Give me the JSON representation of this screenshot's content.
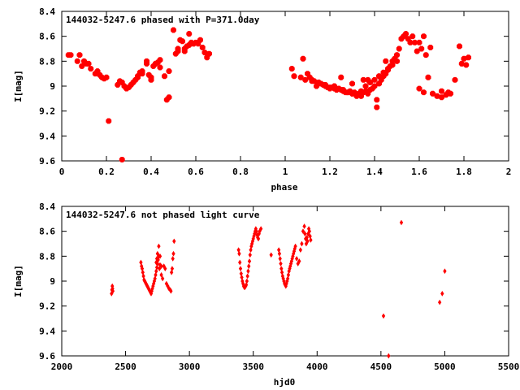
{
  "chart_data": [
    {
      "type": "scatter",
      "title": "144032-5247.6 phased with P=371.0day",
      "xlabel": "phase",
      "ylabel": "I[mag]",
      "xlim": [
        0,
        2
      ],
      "ylim": [
        9.6,
        8.4
      ],
      "y_inverted": true,
      "xticks": [
        "0",
        "0.2",
        "0.4",
        "0.6",
        "0.8",
        "1",
        "1.2",
        "1.4",
        "1.6",
        "1.8",
        "2"
      ],
      "yticks": [
        "8.4",
        "8.6",
        "8.8",
        "9",
        "9.2",
        "9.4",
        "9.6"
      ],
      "grid": false,
      "marker_color": "#ff0000",
      "marker": "star",
      "x": [
        0.03,
        0.04,
        0.07,
        0.08,
        0.09,
        0.1,
        0.11,
        0.12,
        0.13,
        0.15,
        0.16,
        0.17,
        0.18,
        0.19,
        0.2,
        0.21,
        0.25,
        0.26,
        0.27,
        0.28,
        0.29,
        0.3,
        0.31,
        0.32,
        0.33,
        0.34,
        0.35,
        0.36,
        0.38,
        0.39,
        0.4,
        0.41,
        0.42,
        0.43,
        0.44,
        0.47,
        0.48,
        0.51,
        0.52,
        0.53,
        0.54,
        0.55,
        0.56,
        0.57,
        0.58,
        0.59,
        0.6,
        0.61,
        0.62,
        0.63,
        0.64,
        0.65,
        0.66,
        0.27,
        0.29,
        0.34,
        0.36,
        0.38,
        0.4,
        0.42,
        0.44,
        0.46,
        0.48,
        0.5,
        0.52,
        0.55,
        0.57,
        0.59,
        1.03,
        1.04,
        1.07,
        1.08,
        1.09,
        1.1,
        1.11,
        1.12,
        1.13,
        1.15,
        1.16,
        1.17,
        1.18,
        1.19,
        1.2,
        1.21,
        1.22,
        1.23,
        1.24,
        1.25,
        1.26,
        1.27,
        1.28,
        1.29,
        1.3,
        1.31,
        1.32,
        1.33,
        1.34,
        1.35,
        1.36,
        1.37,
        1.38,
        1.39,
        1.4,
        1.41,
        1.42,
        1.43,
        1.44,
        1.45,
        1.46,
        1.47,
        1.48,
        1.49,
        1.5,
        1.51,
        1.52,
        1.53,
        1.54,
        1.55,
        1.56,
        1.57,
        1.58,
        1.59,
        1.6,
        1.61,
        1.62,
        1.63,
        1.64,
        1.66,
        1.68,
        1.7,
        1.72,
        1.74,
        1.76,
        1.78,
        1.8,
        1.81,
        1.82,
        1.12,
        1.14,
        1.16,
        1.18,
        1.2,
        1.22,
        1.24,
        1.26,
        1.28,
        1.3,
        1.32,
        1.34,
        1.36,
        1.38,
        1.4,
        1.42,
        1.44,
        1.46,
        1.48,
        1.5,
        1.25,
        1.3,
        1.35,
        1.37,
        1.41,
        1.45,
        1.6,
        1.62,
        1.65,
        1.7,
        1.73,
        1.79
      ],
      "y": [
        8.75,
        8.75,
        8.8,
        8.75,
        8.84,
        8.8,
        8.82,
        8.82,
        8.86,
        8.9,
        8.88,
        8.91,
        8.93,
        8.94,
        8.93,
        9.28,
        8.99,
        8.96,
        9.59,
        9.0,
        9.02,
        9.01,
        8.99,
        8.97,
        8.95,
        8.92,
        8.89,
        8.9,
        8.82,
        8.91,
        8.93,
        8.84,
        8.82,
        8.81,
        8.79,
        9.11,
        9.09,
        8.74,
        8.72,
        8.63,
        8.64,
        8.7,
        8.68,
        8.67,
        8.65,
        8.66,
        8.65,
        8.66,
        8.63,
        8.69,
        8.73,
        8.77,
        8.74,
        8.97,
        9.02,
        8.93,
        8.88,
        8.8,
        8.95,
        8.82,
        8.85,
        8.92,
        8.88,
        8.55,
        8.7,
        8.72,
        8.58,
        8.66,
        8.86,
        8.92,
        8.93,
        8.78,
        8.95,
        8.9,
        8.93,
        8.95,
        8.96,
        8.97,
        8.98,
        8.99,
        9.0,
        9.01,
        9.02,
        9.01,
        9.02,
        9.03,
        9.02,
        9.03,
        9.04,
        9.05,
        9.05,
        9.04,
        9.06,
        9.05,
        9.07,
        9.06,
        9.08,
        9.05,
        9.04,
        9.06,
        9.03,
        9.02,
        9.0,
        9.17,
        8.98,
        8.95,
        8.92,
        8.9,
        8.87,
        8.84,
        8.8,
        8.78,
        8.75,
        8.7,
        8.62,
        8.6,
        8.58,
        8.62,
        8.65,
        8.6,
        8.65,
        8.72,
        9.02,
        8.7,
        9.05,
        8.75,
        8.93,
        9.06,
        9.08,
        9.04,
        9.07,
        9.06,
        8.95,
        8.68,
        8.78,
        8.83,
        8.77,
        8.96,
        9.0,
        8.98,
        8.99,
        9.01,
        9.0,
        9.02,
        9.03,
        9.05,
        9.06,
        9.08,
        9.04,
        9.0,
        8.97,
        8.95,
        8.92,
        8.89,
        8.86,
        8.83,
        8.8,
        8.93,
        8.98,
        8.95,
        8.95,
        9.11,
        8.8,
        8.65,
        8.6,
        8.69,
        9.09,
        9.05,
        8.82
      ]
    },
    {
      "type": "scatter",
      "title": "144032-5247.6 not phased light curve",
      "xlabel": "hjd0",
      "ylabel": "I[mag]",
      "xlim": [
        2000,
        5500
      ],
      "ylim": [
        9.6,
        8.4
      ],
      "y_inverted": true,
      "xticks": [
        "2000",
        "2500",
        "3000",
        "3500",
        "4000",
        "4500",
        "5000",
        "5500"
      ],
      "yticks": [
        "8.4",
        "8.6",
        "8.8",
        "9",
        "9.2",
        "9.4",
        "9.6"
      ],
      "grid": false,
      "marker_color": "#ff0000",
      "marker": "diamond",
      "x": [
        2390,
        2393,
        2396,
        2398,
        2400,
        2620,
        2625,
        2630,
        2635,
        2640,
        2645,
        2650,
        2655,
        2660,
        2665,
        2670,
        2675,
        2680,
        2685,
        2690,
        2695,
        2700,
        2705,
        2710,
        2715,
        2720,
        2725,
        2730,
        2735,
        2740,
        2745,
        2750,
        2755,
        2760,
        2765,
        2770,
        2780,
        2790,
        2800,
        2810,
        2820,
        2830,
        2840,
        2850,
        2855,
        2860,
        2865,
        2870,
        2875,
        2880,
        2740,
        2745,
        2750,
        2760,
        2770,
        2780,
        3385,
        3390,
        3395,
        3400,
        3405,
        3410,
        3415,
        3420,
        3425,
        3430,
        3435,
        3440,
        3445,
        3450,
        3455,
        3460,
        3465,
        3470,
        3475,
        3480,
        3485,
        3490,
        3495,
        3500,
        3505,
        3510,
        3515,
        3520,
        3525,
        3530,
        3535,
        3540,
        3545,
        3550,
        3560,
        3640,
        3700,
        3705,
        3710,
        3715,
        3720,
        3725,
        3730,
        3735,
        3740,
        3745,
        3750,
        3755,
        3760,
        3765,
        3770,
        3775,
        3780,
        3785,
        3790,
        3795,
        3800,
        3805,
        3810,
        3815,
        3820,
        3825,
        3830,
        3840,
        3850,
        3860,
        3870,
        3880,
        3890,
        3900,
        3905,
        3910,
        3915,
        3920,
        3925,
        3930,
        3935,
        3940,
        3945,
        3950,
        4520,
        4560,
        4660,
        4960,
        4980,
        5000
      ],
      "y": [
        9.1,
        9.07,
        9.04,
        9.06,
        9.08,
        8.85,
        8.88,
        8.9,
        8.93,
        8.96,
        8.99,
        9.0,
        9.01,
        9.02,
        9.03,
        9.04,
        9.05,
        9.06,
        9.07,
        9.08,
        9.09,
        9.1,
        9.08,
        9.06,
        9.04,
        9.02,
        9.0,
        8.98,
        8.95,
        8.92,
        8.89,
        8.86,
        8.83,
        8.8,
        8.9,
        8.87,
        8.95,
        8.98,
        8.88,
        8.9,
        9.02,
        9.04,
        9.06,
        9.07,
        9.08,
        8.93,
        8.9,
        8.82,
        8.78,
        8.68,
        8.85,
        8.82,
        8.78,
        8.72,
        8.8,
        8.88,
        8.75,
        8.78,
        8.85,
        8.9,
        8.94,
        8.97,
        9.0,
        9.02,
        9.04,
        9.05,
        9.05,
        9.04,
        9.03,
        9.0,
        8.96,
        8.92,
        8.88,
        8.84,
        8.79,
        8.75,
        8.72,
        8.7,
        8.68,
        8.66,
        8.64,
        8.62,
        8.6,
        8.58,
        8.6,
        8.63,
        8.65,
        8.66,
        8.62,
        8.6,
        8.58,
        8.79,
        8.75,
        8.78,
        8.82,
        8.86,
        8.9,
        8.93,
        8.96,
        8.98,
        9.0,
        9.02,
        9.03,
        9.04,
        9.02,
        9.0,
        8.98,
        8.95,
        8.92,
        8.9,
        8.88,
        8.86,
        8.84,
        8.82,
        8.8,
        8.78,
        8.76,
        8.74,
        8.72,
        8.82,
        8.86,
        8.84,
        8.75,
        8.7,
        8.6,
        8.56,
        8.62,
        8.66,
        8.7,
        8.65,
        8.68,
        8.62,
        8.58,
        8.6,
        8.64,
        8.67,
        9.28,
        9.6,
        8.53,
        9.17,
        9.1,
        8.92
      ]
    }
  ]
}
